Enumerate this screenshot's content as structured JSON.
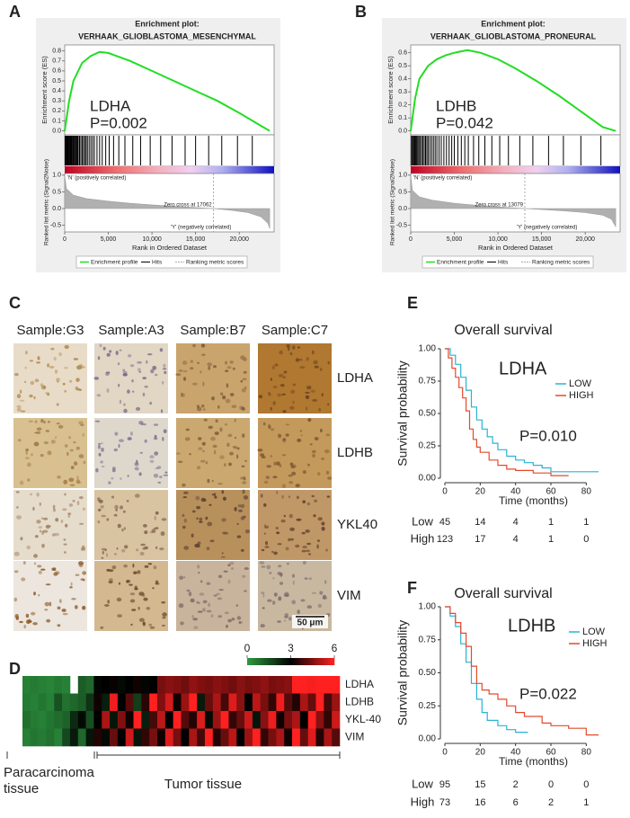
{
  "gsea": [
    {
      "label": "A",
      "title_lines": [
        "Enrichment plot:",
        "VERHAAK_GLIOBLASTOMA_MESENCHYMAL"
      ],
      "gene": "LDHA",
      "p_text": "P=0.002",
      "xlim": [
        0,
        24000
      ],
      "xticks": [
        0,
        {
          "value": 5000,
          "label": "5,000"
        },
        {
          "value": 10000,
          "label": "10,000"
        },
        {
          "value": 15000,
          "label": "15,000"
        },
        {
          "value": 20000,
          "label": "20,000"
        }
      ],
      "xlabel": "Rank in Ordered Dataset",
      "es": {
        "ylabel": "Enrichment score (ES)",
        "color": "#22dd22",
        "ylim": [
          -0.04,
          0.86
        ],
        "yticks": [
          {
            "value": 0,
            "label": "0.0"
          },
          0.1,
          0.2,
          0.3,
          0.4,
          0.5,
          0.6,
          0.7,
          0.8
        ],
        "x": [
          0,
          500,
          1000,
          2000,
          3000,
          4000,
          5000,
          7500,
          10000,
          12500,
          15000,
          17500,
          20000,
          22500,
          23500
        ],
        "values": [
          0,
          0.3,
          0.5,
          0.68,
          0.75,
          0.79,
          0.78,
          0.7,
          0.6,
          0.5,
          0.4,
          0.3,
          0.18,
          0.05,
          0
        ]
      },
      "hits": [
        50,
        150,
        250,
        320,
        400,
        480,
        560,
        650,
        720,
        800,
        900,
        980,
        1050,
        1150,
        1250,
        1350,
        1450,
        1550,
        1700,
        1850,
        2000,
        2150,
        2300,
        2450,
        2600,
        2800,
        3000,
        3200,
        3400,
        3700,
        4000,
        4300,
        4700,
        5100,
        5600,
        6200,
        6900,
        7800,
        8700,
        9800,
        11000,
        12300,
        13800,
        15000,
        16500,
        18000,
        19800,
        21500
      ],
      "metric": {
        "ylabel": "Ranked list metric (Signal2Noise)",
        "ylim": [
          -0.7,
          1.05
        ],
        "yticks": [
          {
            "value": 1,
            "label": "1.0"
          },
          0.5,
          {
            "value": 0,
            "label": "0.0"
          },
          -0.5
        ],
        "x": [
          0,
          200,
          1000,
          2500,
          5000,
          7500,
          10000,
          12500,
          15000,
          17062,
          19000,
          21000,
          22500,
          23300,
          23500
        ],
        "values": [
          1.0,
          0.6,
          0.4,
          0.3,
          0.22,
          0.16,
          0.11,
          0.07,
          0.03,
          0,
          -0.05,
          -0.12,
          -0.25,
          -0.45,
          -0.6
        ],
        "pos_label": "'N' (positively correlated)",
        "neg_label": "'Y' (negatively correlated)",
        "zero_text": "Zero cross at 17062",
        "zero_cross": 17062
      },
      "legend": [
        "Enrichment profile",
        "Hits",
        "Ranking metric scores"
      ]
    },
    {
      "label": "B",
      "title_lines": [
        "Enrichment plot:",
        "VERHAAK_GLIOBLASTOMA_PRONEURAL"
      ],
      "gene": "LDHB",
      "p_text": "P=0.042",
      "xlim": [
        0,
        24000
      ],
      "xticks": [
        0,
        {
          "value": 5000,
          "label": "5,000"
        },
        {
          "value": 10000,
          "label": "10,000"
        },
        {
          "value": 15000,
          "label": "15,000"
        },
        {
          "value": 20000,
          "label": "20,000"
        }
      ],
      "xlabel": "Rank in Ordered Dataset",
      "es": {
        "ylabel": "Enrichment score (ES)",
        "color": "#22dd22",
        "ylim": [
          -0.03,
          0.66
        ],
        "yticks": [
          {
            "value": 0,
            "label": "0.0"
          },
          0.1,
          0.2,
          0.3,
          0.4,
          0.5,
          0.6
        ],
        "x": [
          0,
          500,
          1000,
          2000,
          3000,
          4000,
          5000,
          6500,
          8000,
          10000,
          12000,
          14500,
          17000,
          19500,
          22000,
          23500
        ],
        "values": [
          0,
          0.25,
          0.4,
          0.5,
          0.55,
          0.58,
          0.6,
          0.62,
          0.6,
          0.55,
          0.48,
          0.38,
          0.27,
          0.15,
          0.03,
          0
        ]
      },
      "hits": [
        80,
        200,
        300,
        420,
        500,
        600,
        700,
        820,
        950,
        1100,
        1250,
        1400,
        1550,
        1700,
        1850,
        2000,
        2200,
        2400,
        2600,
        2800,
        3000,
        3250,
        3500,
        3800,
        4100,
        4400,
        4700,
        5000,
        5400,
        5800,
        6200,
        6600,
        7200,
        7800,
        8500,
        9300,
        10200,
        11200,
        12500,
        14000,
        15800,
        17500,
        19500,
        21800
      ],
      "metric": {
        "ylabel": "Ranked list metric (Signal2Noise)",
        "ylim": [
          -0.7,
          1.05
        ],
        "yticks": [
          {
            "value": 1,
            "label": "1.0"
          },
          0.5,
          {
            "value": 0,
            "label": "0.0"
          },
          -0.5
        ],
        "x": [
          0,
          200,
          1000,
          2500,
          5000,
          7500,
          10000,
          13079,
          15000,
          17500,
          20000,
          22000,
          23000,
          23500
        ],
        "values": [
          1.0,
          0.55,
          0.35,
          0.25,
          0.16,
          0.1,
          0.05,
          0,
          -0.03,
          -0.07,
          -0.12,
          -0.2,
          -0.32,
          -0.55
        ],
        "pos_label": "'N' (positively correlated)",
        "neg_label": "'Y' (negatively correlated)",
        "zero_text": "Zero cross at 13079",
        "zero_cross": 13079
      },
      "legend": [
        "Enrichment profile",
        "Hits",
        "Ranking metric scores"
      ]
    }
  ],
  "ihc": {
    "label": "C",
    "samples": [
      "Sample:G3",
      "Sample:A3",
      "Sample:B7",
      "Sample:C7"
    ],
    "markers": [
      "LDHA",
      "LDHB",
      "YKL40",
      "VIM"
    ],
    "scale_bar": "50 μm",
    "tile_colors": [
      [
        [
          "#e8dcc8",
          "#b08850"
        ],
        [
          "#e2d6c4",
          "#7a6a8a"
        ],
        [
          "#c9a46c",
          "#7a5a3a"
        ],
        [
          "#b07830",
          "#6a4020"
        ]
      ],
      [
        [
          "#d8c090",
          "#a07840"
        ],
        [
          "#ded8cc",
          "#7a7090"
        ],
        [
          "#caa870",
          "#80603a"
        ],
        [
          "#c49a5c",
          "#7a5530"
        ]
      ],
      [
        [
          "#e6dccc",
          "#a08060"
        ],
        [
          "#d8c4a0",
          "#806050"
        ],
        [
          "#b8905c",
          "#5a4030"
        ],
        [
          "#c09868",
          "#604028"
        ]
      ],
      [
        [
          "#ece6de",
          "#8a5a28"
        ],
        [
          "#d4b890",
          "#6a4a30"
        ],
        [
          "#c8b49c",
          "#806a6a"
        ],
        [
          "#c8b8a0",
          "#7a6a70"
        ]
      ]
    ]
  },
  "heatmap": {
    "label": "D",
    "vlim": [
      0,
      6
    ],
    "scale_ticks": [
      0,
      3,
      6
    ],
    "colors": [
      "#2e9a40",
      "#000000",
      "#ff2020"
    ],
    "rows": [
      "LDHA",
      "LDHB",
      "YKL-40",
      "VIM"
    ],
    "values": [
      [
        0.5,
        0.6,
        0.5,
        0.4,
        0.6,
        0.5,
        null,
        1.2,
        1.0,
        2.9,
        3.0,
        3.1,
        2.8,
        3.0,
        3.2,
        2.9,
        3.0,
        4.4,
        4.6,
        4.5,
        4.3,
        4.7,
        4.5,
        4.4,
        4.6,
        4.5,
        4.3,
        4.6,
        4.4,
        4.5,
        4.7,
        4.4,
        4.5,
        4.6,
        6,
        6,
        5.9,
        6,
        6,
        6
      ],
      [
        0.6,
        0.5,
        0.7,
        0.5,
        1.4,
        0.8,
        1.0,
        1.2,
        2.0,
        3.2,
        2.4,
        5.8,
        3.0,
        4.0,
        1.8,
        3.5,
        6.0,
        4.5,
        5.5,
        3.2,
        4.8,
        6.0,
        2.5,
        4.2,
        5.0,
        3.8,
        5.6,
        4.6,
        3.0,
        5.2,
        4.4,
        3.6,
        5.8,
        4.0,
        3.4,
        5.0,
        4.2,
        6.0,
        3.8,
        4.8
      ],
      [
        0.8,
        0.6,
        0.5,
        0.7,
        0.9,
        1.1,
        2.2,
        2.8,
        1.5,
        3.0,
        5.0,
        2.6,
        4.5,
        3.2,
        6.0,
        2.4,
        3.8,
        5.2,
        3.0,
        6.0,
        4.0,
        3.4,
        5.6,
        2.8,
        4.8,
        6.0,
        3.6,
        4.2,
        5.4,
        2.6,
        4.6,
        5.8,
        3.2,
        4.4,
        5.0,
        3.0,
        6.0,
        4.6,
        3.6,
        5.4
      ],
      [
        0.5,
        0.7,
        0.6,
        0.8,
        0.5,
        1.6,
        2.5,
        1.0,
        2.6,
        3.4,
        2.8,
        4.2,
        3.0,
        5.4,
        2.6,
        3.6,
        4.4,
        3.2,
        5.6,
        4.4,
        3.0,
        5.0,
        3.8,
        6.0,
        3.4,
        4.2,
        5.2,
        3.0,
        4.8,
        6.0,
        3.6,
        4.4,
        5.0,
        3.2,
        6.0,
        4.2,
        5.6,
        3.4,
        5.0,
        4.0
      ]
    ],
    "groups": [
      "Paracarcinoma tissue",
      "Tumor tissue"
    ]
  },
  "survival": [
    {
      "label": "E",
      "title": "Overall survival",
      "gene": "LDHA",
      "p_text": "P=0.010",
      "xlabel": "Time (months)",
      "ylabel": "Survival probability",
      "xlim": [
        0,
        90
      ],
      "ylim": [
        0,
        1
      ],
      "xticks": [
        0,
        20,
        40,
        60,
        80
      ],
      "yticks": [
        {
          "value": 0,
          "label": "0.00"
        },
        0.25,
        {
          "value": 0.5,
          "label": "0.50"
        },
        0.75,
        {
          "value": 1,
          "label": "1.00"
        }
      ],
      "series": [
        {
          "name": "LOW",
          "color": "#29b2d4",
          "x": [
            0,
            3,
            6,
            9,
            12,
            15,
            18,
            21,
            24,
            27,
            30,
            35,
            40,
            45,
            50,
            55,
            60,
            87
          ],
          "values": [
            1,
            0.95,
            0.88,
            0.78,
            0.68,
            0.55,
            0.45,
            0.38,
            0.32,
            0.27,
            0.22,
            0.17,
            0.14,
            0.12,
            0.1,
            0.08,
            0.05,
            0.05
          ]
        },
        {
          "name": "HIGH",
          "color": "#e4492d",
          "x": [
            0,
            2,
            4,
            6,
            8,
            10,
            12,
            14,
            16,
            18,
            20,
            25,
            30,
            35,
            40,
            50,
            60,
            70
          ],
          "values": [
            1,
            0.93,
            0.85,
            0.78,
            0.7,
            0.62,
            0.52,
            0.38,
            0.3,
            0.24,
            0.2,
            0.14,
            0.1,
            0.07,
            0.06,
            0.04,
            0.02,
            0.02
          ]
        }
      ],
      "risk_table": [
        {
          "name": "Low",
          "color": "#29b2d4",
          "counts": [
            45,
            14,
            4,
            1,
            1
          ]
        },
        {
          "name": "High",
          "color": "#e4492d",
          "counts": [
            123,
            17,
            4,
            1,
            0
          ]
        }
      ]
    },
    {
      "label": "F",
      "title": "Overall survival",
      "gene": "LDHB",
      "p_text": "P=0.022",
      "xlabel": "Time (months)",
      "ylabel": "Survival probability",
      "xlim": [
        0,
        90
      ],
      "ylim": [
        0,
        1
      ],
      "xticks": [
        0,
        20,
        40,
        60,
        80
      ],
      "yticks": [
        {
          "value": 0,
          "label": "0.00"
        },
        0.25,
        {
          "value": 0.5,
          "label": "0.50"
        },
        0.75,
        {
          "value": 1,
          "label": "1.00"
        }
      ],
      "series": [
        {
          "name": "LOW",
          "color": "#29b2d4",
          "x": [
            0,
            3,
            6,
            9,
            12,
            15,
            18,
            21,
            24,
            30,
            35,
            40,
            47
          ],
          "values": [
            1,
            0.93,
            0.85,
            0.72,
            0.58,
            0.42,
            0.3,
            0.2,
            0.14,
            0.1,
            0.07,
            0.05,
            0.05
          ]
        },
        {
          "name": "HIGH",
          "color": "#e4492d",
          "x": [
            0,
            3,
            6,
            9,
            12,
            15,
            18,
            21,
            25,
            30,
            35,
            40,
            45,
            55,
            60,
            70,
            80,
            87
          ],
          "values": [
            1,
            0.95,
            0.88,
            0.8,
            0.7,
            0.55,
            0.42,
            0.37,
            0.34,
            0.3,
            0.25,
            0.2,
            0.17,
            0.12,
            0.1,
            0.08,
            0.03,
            0.03
          ]
        }
      ],
      "risk_table": [
        {
          "name": "Low",
          "color": "#29b2d4",
          "counts": [
            95,
            15,
            2,
            0,
            0
          ]
        },
        {
          "name": "High",
          "color": "#e4492d",
          "counts": [
            73,
            16,
            6,
            2,
            1
          ]
        }
      ]
    }
  ]
}
